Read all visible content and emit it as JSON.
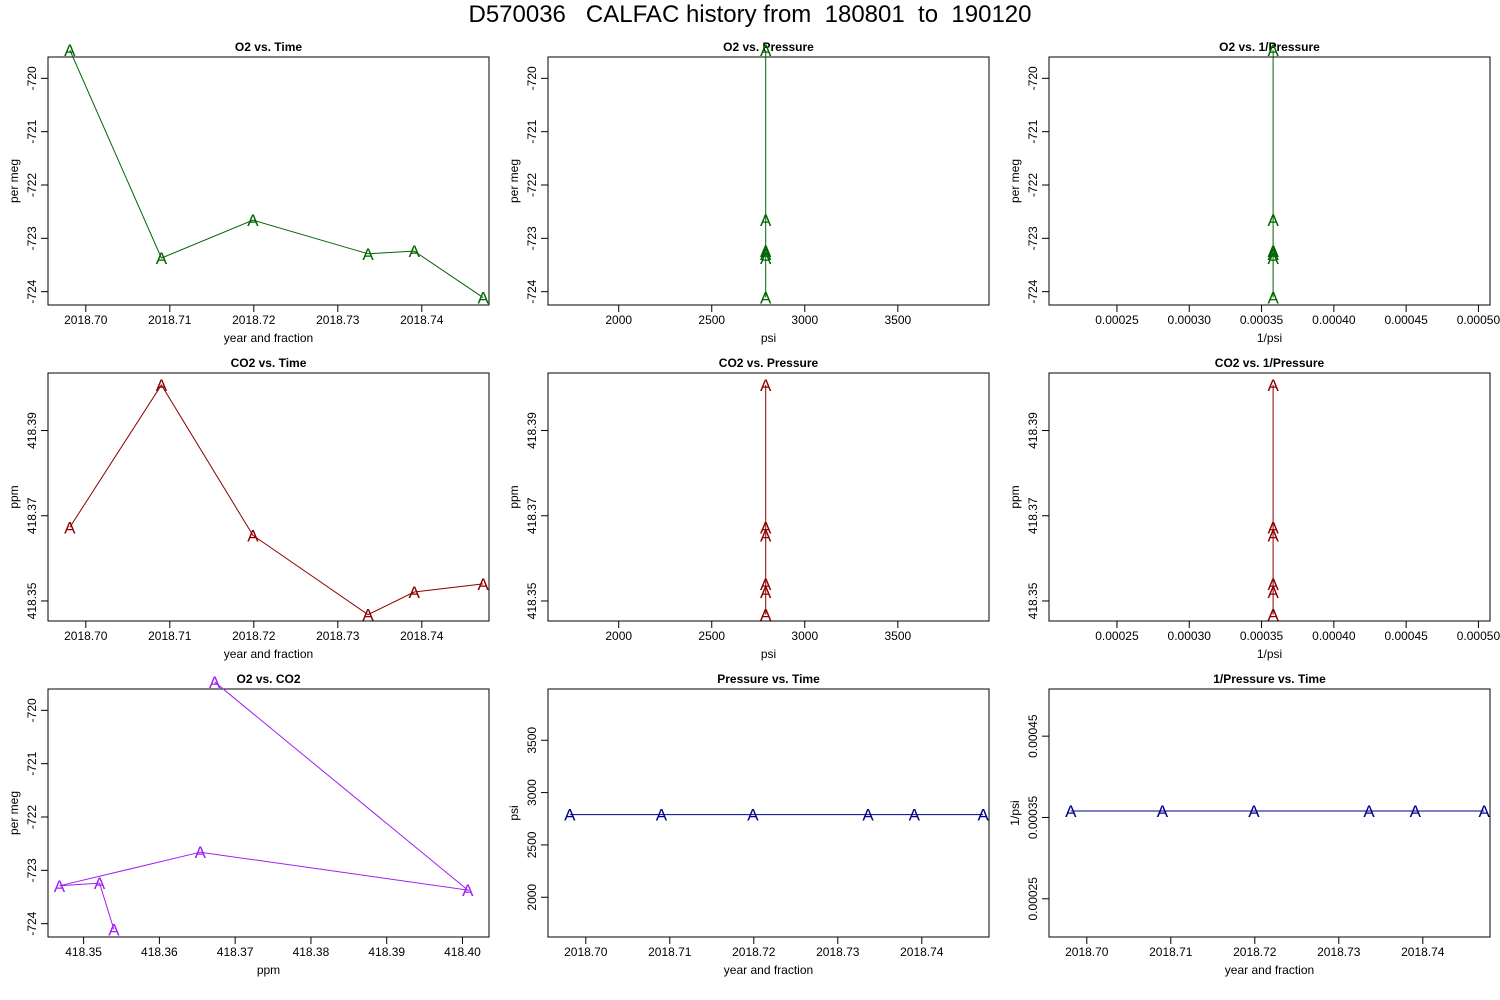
{
  "figure": {
    "title": "D570036   CALFAC history from  180801  to  190120"
  },
  "chart_data": [
    {
      "type": "line",
      "title": "O2 vs. Time",
      "xlabel": "year and fraction",
      "ylabel": "per meg",
      "color": "#006400",
      "marker": "A",
      "xlim": [
        2018.6955,
        2018.748
      ],
      "ylim": [
        -724.25,
        -719.6
      ],
      "xticks": [
        2018.7,
        2018.71,
        2018.72,
        2018.73,
        2018.74
      ],
      "xtick_labels": [
        "2018.70",
        "2018.71",
        "2018.72",
        "2018.73",
        "2018.74"
      ],
      "yticks": [
        -720,
        -721,
        -722,
        -723,
        -724
      ],
      "ytick_labels": [
        "-720",
        "-721",
        "-722",
        "-723",
        "-724"
      ],
      "x": [
        2018.6981,
        2018.709,
        2018.7199,
        2018.7336,
        2018.7391,
        2018.7473
      ],
      "y": [
        -719.47,
        -723.37,
        -722.66,
        -723.29,
        -723.24,
        -724.11
      ]
    },
    {
      "type": "line",
      "title": "O2 vs. Pressure",
      "xlabel": "psi",
      "ylabel": "per meg",
      "color": "#006400",
      "marker": "A",
      "xlim": [
        1620,
        3990
      ],
      "ylim": [
        -724.25,
        -719.6
      ],
      "xticks": [
        2000,
        2500,
        3000,
        3500
      ],
      "xtick_labels": [
        "2000",
        "2500",
        "3000",
        "3500"
      ],
      "yticks": [
        -720,
        -721,
        -722,
        -723,
        -724
      ],
      "ytick_labels": [
        "-720",
        "-721",
        "-722",
        "-723",
        "-724"
      ],
      "x": [
        2790,
        2790,
        2790,
        2790,
        2790,
        2790
      ],
      "y": [
        -719.47,
        -723.37,
        -722.66,
        -723.29,
        -723.24,
        -724.11
      ]
    },
    {
      "type": "line",
      "title": "O2 vs. 1/Pressure",
      "xlabel": "1/psi",
      "ylabel": "per meg",
      "color": "#006400",
      "marker": "A",
      "xlim": [
        0.000203,
        0.000508
      ],
      "ylim": [
        -724.25,
        -719.6
      ],
      "xticks": [
        0.00025,
        0.0003,
        0.00035,
        0.0004,
        0.00045,
        0.0005
      ],
      "xtick_labels": [
        "0.00025",
        "0.00030",
        "0.00035",
        "0.00040",
        "0.00045",
        "0.00050"
      ],
      "yticks": [
        -720,
        -721,
        -722,
        -723,
        -724
      ],
      "ytick_labels": [
        "-720",
        "-721",
        "-722",
        "-723",
        "-724"
      ],
      "x": [
        0.000358,
        0.000358,
        0.000358,
        0.000358,
        0.000358,
        0.000358
      ],
      "y": [
        -719.47,
        -723.37,
        -722.66,
        -723.29,
        -723.24,
        -724.11
      ]
    },
    {
      "type": "line",
      "title": "CO2 vs. Time",
      "xlabel": "year and fraction",
      "ylabel": "ppm",
      "color": "#8b0000",
      "marker": "A",
      "xlim": [
        2018.6955,
        2018.748
      ],
      "ylim": [
        418.3453,
        418.4035
      ],
      "xticks": [
        2018.7,
        2018.71,
        2018.72,
        2018.73,
        2018.74
      ],
      "xtick_labels": [
        "2018.70",
        "2018.71",
        "2018.72",
        "2018.73",
        "2018.74"
      ],
      "yticks": [
        418.35,
        418.37,
        418.39
      ],
      "ytick_labels": [
        "418.35",
        "418.37",
        "418.39"
      ],
      "x": [
        2018.6981,
        2018.709,
        2018.7199,
        2018.7336,
        2018.7391,
        2018.7473
      ],
      "y": [
        418.3673,
        418.4007,
        418.3654,
        418.3468,
        418.3521,
        418.354
      ]
    },
    {
      "type": "line",
      "title": "CO2 vs. Pressure",
      "xlabel": "psi",
      "ylabel": "ppm",
      "color": "#8b0000",
      "marker": "A",
      "xlim": [
        1620,
        3990
      ],
      "ylim": [
        418.3453,
        418.4035
      ],
      "xticks": [
        2000,
        2500,
        3000,
        3500
      ],
      "xtick_labels": [
        "2000",
        "2500",
        "3000",
        "3500"
      ],
      "yticks": [
        418.35,
        418.37,
        418.39
      ],
      "ytick_labels": [
        "418.35",
        "418.37",
        "418.39"
      ],
      "x": [
        2790,
        2790,
        2790,
        2790,
        2790,
        2790
      ],
      "y": [
        418.3673,
        418.4007,
        418.3654,
        418.3468,
        418.3521,
        418.354
      ]
    },
    {
      "type": "line",
      "title": "CO2 vs. 1/Pressure",
      "xlabel": "1/psi",
      "ylabel": "ppm",
      "color": "#8b0000",
      "marker": "A",
      "xlim": [
        0.000203,
        0.000508
      ],
      "ylim": [
        418.3453,
        418.4035
      ],
      "xticks": [
        0.00025,
        0.0003,
        0.00035,
        0.0004,
        0.00045,
        0.0005
      ],
      "xtick_labels": [
        "0.00025",
        "0.00030",
        "0.00035",
        "0.00040",
        "0.00045",
        "0.00050"
      ],
      "yticks": [
        418.35,
        418.37,
        418.39
      ],
      "ytick_labels": [
        "418.35",
        "418.37",
        "418.39"
      ],
      "x": [
        0.000358,
        0.000358,
        0.000358,
        0.000358,
        0.000358,
        0.000358
      ],
      "y": [
        418.3673,
        418.4007,
        418.3654,
        418.3468,
        418.3521,
        418.354
      ]
    },
    {
      "type": "line",
      "title": "O2 vs. CO2",
      "xlabel": "ppm",
      "ylabel": "per meg",
      "color": "#a020f0",
      "marker": "A",
      "xlim": [
        418.3453,
        418.4035
      ],
      "ylim": [
        -724.25,
        -719.6
      ],
      "xticks": [
        418.35,
        418.36,
        418.37,
        418.38,
        418.39,
        418.4
      ],
      "xtick_labels": [
        "418.35",
        "418.36",
        "418.37",
        "418.38",
        "418.39",
        "418.40"
      ],
      "yticks": [
        -720,
        -721,
        -722,
        -723,
        -724
      ],
      "ytick_labels": [
        "-720",
        "-721",
        "-722",
        "-723",
        "-724"
      ],
      "x": [
        418.3673,
        418.4007,
        418.3654,
        418.3468,
        418.3521,
        418.354
      ],
      "y": [
        -719.47,
        -723.37,
        -722.66,
        -723.29,
        -723.24,
        -724.11
      ]
    },
    {
      "type": "line",
      "title": "Pressure vs. Time",
      "xlabel": "year and fraction",
      "ylabel": "psi",
      "color": "#00008b",
      "marker": "A",
      "xlim": [
        2018.6955,
        2018.748
      ],
      "ylim": [
        1620,
        3990
      ],
      "xticks": [
        2018.7,
        2018.71,
        2018.72,
        2018.73,
        2018.74
      ],
      "xtick_labels": [
        "2018.70",
        "2018.71",
        "2018.72",
        "2018.73",
        "2018.74"
      ],
      "yticks": [
        2000,
        2500,
        3000,
        3500
      ],
      "ytick_labels": [
        "2000",
        "2500",
        "3000",
        "3500"
      ],
      "x": [
        2018.6981,
        2018.709,
        2018.7199,
        2018.7336,
        2018.7391,
        2018.7473
      ],
      "y": [
        2790,
        2790,
        2790,
        2790,
        2790,
        2790
      ]
    },
    {
      "type": "line",
      "title": "1/Pressure vs. Time",
      "xlabel": "year and fraction",
      "ylabel": "1/psi",
      "color": "#00008b",
      "marker": "A",
      "xlim": [
        2018.6955,
        2018.748
      ],
      "ylim": [
        0.000203,
        0.000508
      ],
      "xticks": [
        2018.7,
        2018.71,
        2018.72,
        2018.73,
        2018.74
      ],
      "xtick_labels": [
        "2018.70",
        "2018.71",
        "2018.72",
        "2018.73",
        "2018.74"
      ],
      "yticks": [
        0.00025,
        0.00035,
        0.00045
      ],
      "ytick_labels": [
        "0.00025",
        "0.00035",
        "0.00045"
      ],
      "x": [
        2018.6981,
        2018.709,
        2018.7199,
        2018.7336,
        2018.7391,
        2018.7473
      ],
      "y": [
        0.000358,
        0.000358,
        0.000358,
        0.000358,
        0.000358,
        0.000358
      ]
    }
  ]
}
